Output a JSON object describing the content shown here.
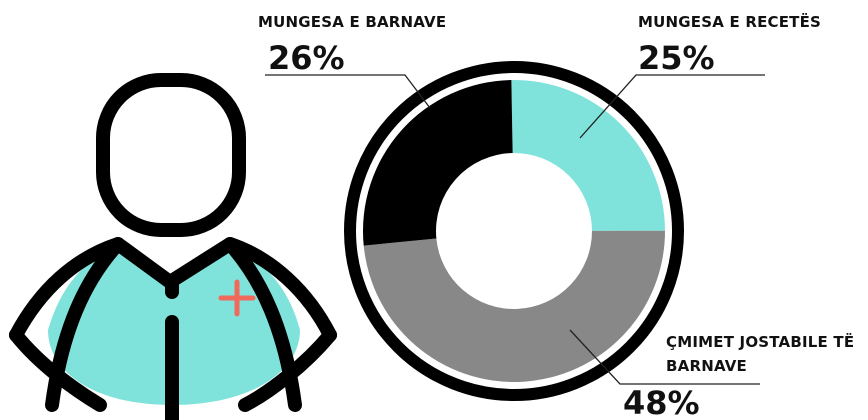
{
  "chart_data": {
    "type": "pie",
    "categories": [
      "MUNGESA E RECETËS",
      "ÇMIMET JOSTABILE TË BARNAVE",
      "MUNGESA E BARNAVE"
    ],
    "values": [
      25,
      48,
      26
    ],
    "value_labels": [
      "25%",
      "48%",
      "26%"
    ],
    "colors": [
      "#7fe3dc",
      "#888888",
      "#000000"
    ],
    "donut": true
  }
}
